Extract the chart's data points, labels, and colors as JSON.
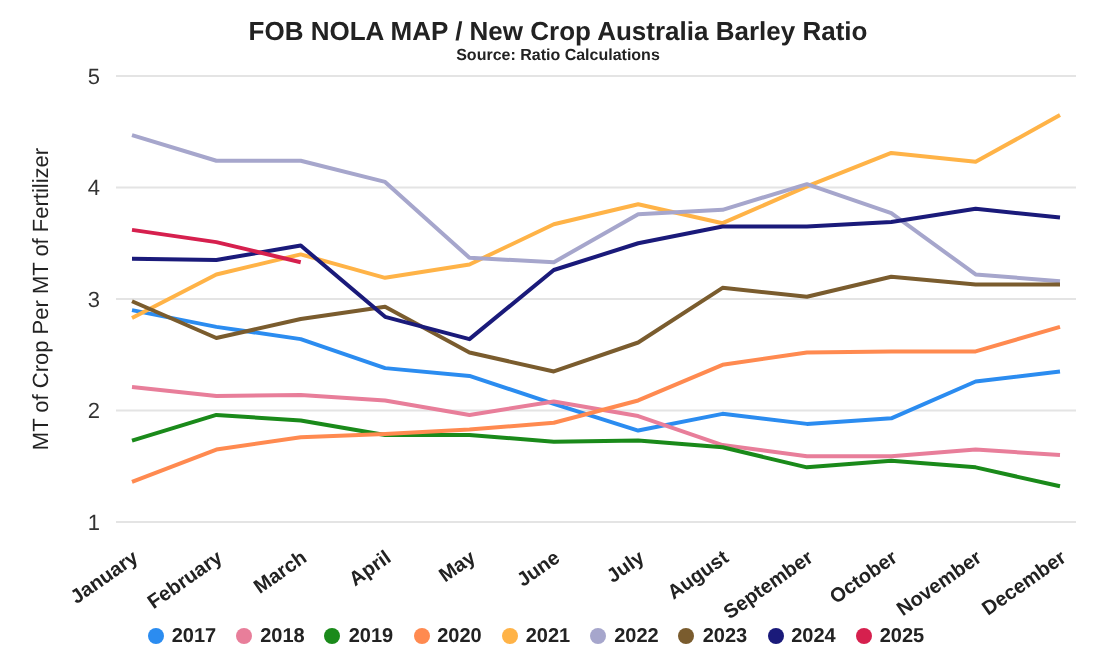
{
  "chart_data": {
    "type": "line",
    "title": "FOB NOLA MAP / New Crop Australia Barley Ratio",
    "subtitle": "Source: Ratio Calculations",
    "ylabel": "MT of Crop Per MT of Fertilizer",
    "categories": [
      "January",
      "February",
      "March",
      "April",
      "May",
      "June",
      "July",
      "August",
      "September",
      "October",
      "November",
      "December"
    ],
    "ylim": [
      1,
      5
    ],
    "yticks": [
      1,
      2,
      3,
      4,
      5
    ],
    "grid": "y",
    "legend": "bottom",
    "marker": "none",
    "line_style": "solid",
    "series": [
      {
        "name": "2017",
        "color": "#2b8cf0",
        "values": [
          2.9,
          2.75,
          2.64,
          2.38,
          2.31,
          2.06,
          1.82,
          1.97,
          1.88,
          1.93,
          2.26,
          2.35
        ]
      },
      {
        "name": "2018",
        "color": "#e87e9a",
        "values": [
          2.21,
          2.13,
          2.14,
          2.09,
          1.96,
          2.08,
          1.95,
          1.69,
          1.59,
          1.59,
          1.65,
          1.6
        ]
      },
      {
        "name": "2019",
        "color": "#1a8a1a",
        "values": [
          1.73,
          1.96,
          1.91,
          1.78,
          1.78,
          1.72,
          1.73,
          1.67,
          1.49,
          1.55,
          1.49,
          1.32
        ]
      },
      {
        "name": "2020",
        "color": "#ff8a50",
        "values": [
          1.36,
          1.65,
          1.76,
          1.79,
          1.83,
          1.89,
          2.09,
          2.41,
          2.52,
          2.53,
          2.53,
          2.75
        ]
      },
      {
        "name": "2021",
        "color": "#ffb347",
        "values": [
          2.83,
          3.22,
          3.4,
          3.19,
          3.31,
          3.67,
          3.85,
          3.68,
          4.01,
          4.31,
          4.23,
          4.65
        ]
      },
      {
        "name": "2022",
        "color": "#a6a6cc",
        "values": [
          4.47,
          4.24,
          4.24,
          4.05,
          3.37,
          3.33,
          3.76,
          3.8,
          4.03,
          3.77,
          3.22,
          3.16
        ]
      },
      {
        "name": "2023",
        "color": "#7a5c2e",
        "values": [
          2.98,
          2.65,
          2.82,
          2.93,
          2.52,
          2.35,
          2.61,
          3.1,
          3.02,
          3.2,
          3.13,
          3.13
        ]
      },
      {
        "name": "2024",
        "color": "#1a1a7a",
        "values": [
          3.36,
          3.35,
          3.48,
          2.84,
          2.64,
          3.26,
          3.5,
          3.65,
          3.65,
          3.69,
          3.81,
          3.73
        ]
      },
      {
        "name": "2025",
        "color": "#d6204e",
        "values": [
          3.62,
          3.51,
          3.33,
          null,
          null,
          null,
          null,
          null,
          null,
          null,
          null,
          null
        ]
      }
    ]
  }
}
